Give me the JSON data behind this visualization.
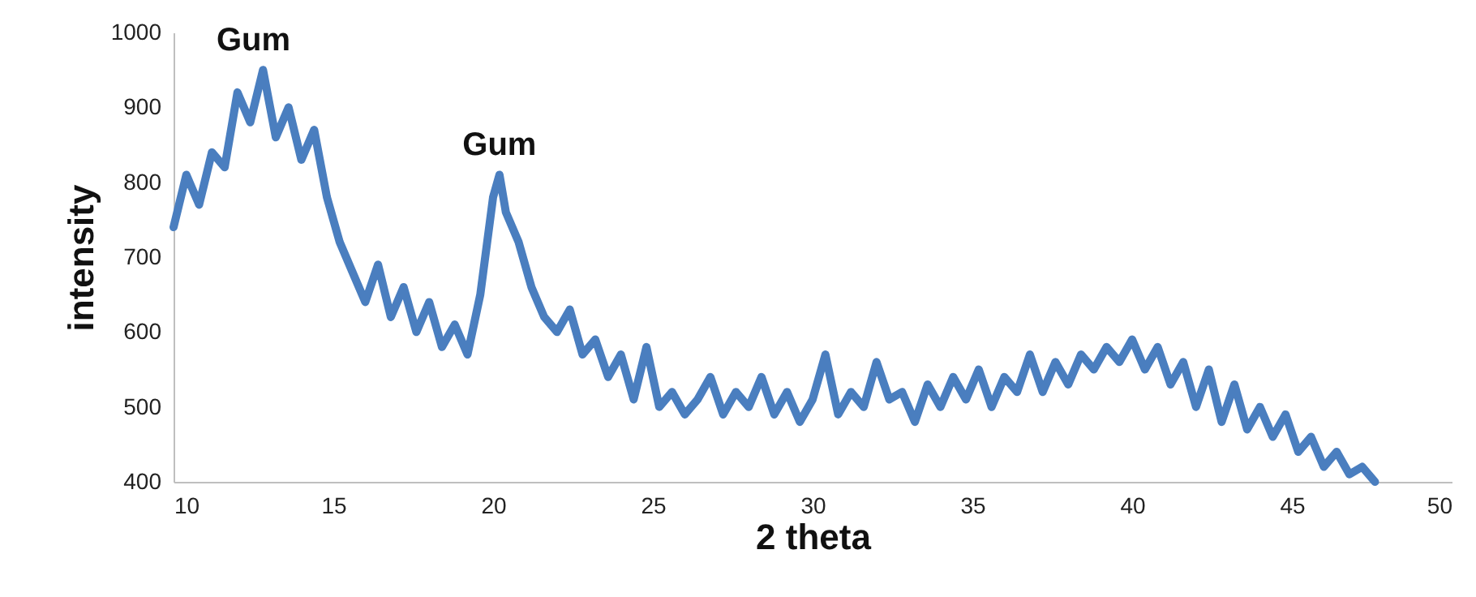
{
  "chart_data": {
    "type": "line",
    "xlabel": "2 theta",
    "ylabel": "intensity",
    "xlim": [
      10,
      50
    ],
    "xticks": [
      10,
      15,
      20,
      25,
      30,
      35,
      40,
      45,
      50
    ],
    "ylim": [
      400,
      1000
    ],
    "yticks": [
      400,
      500,
      600,
      700,
      800,
      900,
      1000
    ],
    "grid": false,
    "marker": "none",
    "line_style": "solid",
    "annotations": [
      {
        "text": "Gum",
        "x": 12.5,
        "y": 950
      },
      {
        "text": "Gum",
        "x": 20.2,
        "y": 810
      }
    ],
    "x": [
      10.0,
      10.4,
      10.8,
      11.2,
      11.6,
      12.0,
      12.4,
      12.8,
      13.2,
      13.6,
      14.0,
      14.4,
      14.8,
      15.2,
      15.6,
      16.0,
      16.4,
      16.8,
      17.2,
      17.6,
      18.0,
      18.4,
      18.8,
      19.2,
      19.6,
      20.0,
      20.2,
      20.4,
      20.8,
      21.2,
      21.6,
      22.0,
      22.4,
      22.8,
      23.2,
      23.6,
      24.0,
      24.4,
      24.8,
      25.2,
      25.6,
      26.0,
      26.4,
      26.8,
      27.2,
      27.6,
      28.0,
      28.4,
      28.8,
      29.2,
      29.6,
      30.0,
      30.4,
      30.8,
      31.2,
      31.6,
      32.0,
      32.4,
      32.8,
      33.2,
      33.6,
      34.0,
      34.4,
      34.8,
      35.2,
      35.6,
      36.0,
      36.4,
      36.8,
      37.2,
      37.6,
      38.0,
      38.4,
      38.8,
      39.2,
      39.6,
      40.0,
      40.4,
      40.8,
      41.2,
      41.6,
      42.0,
      42.4,
      42.8,
      43.2,
      43.6,
      44.0,
      44.4,
      44.8,
      45.2,
      45.6,
      46.0,
      46.4,
      46.8,
      47.2,
      47.6
    ],
    "series": [
      {
        "color": "#4a7ebf",
        "values": [
          740,
          810,
          770,
          840,
          820,
          920,
          880,
          950,
          860,
          900,
          830,
          870,
          780,
          720,
          680,
          640,
          690,
          620,
          660,
          600,
          640,
          580,
          610,
          570,
          650,
          780,
          810,
          760,
          720,
          660,
          620,
          600,
          630,
          570,
          590,
          540,
          570,
          510,
          580,
          500,
          520,
          490,
          510,
          540,
          490,
          520,
          500,
          540,
          490,
          520,
          480,
          510,
          570,
          490,
          520,
          500,
          560,
          510,
          520,
          480,
          530,
          500,
          540,
          510,
          550,
          500,
          540,
          520,
          570,
          520,
          560,
          530,
          570,
          550,
          580,
          560,
          590,
          550,
          580,
          530,
          560,
          500,
          550,
          480,
          530,
          470,
          500,
          460,
          490,
          440,
          460,
          420,
          440,
          410,
          420,
          400
        ]
      }
    ]
  }
}
